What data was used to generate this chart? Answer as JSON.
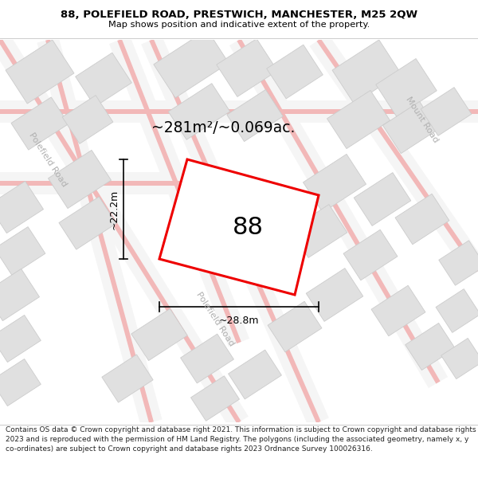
{
  "title": "88, POLEFIELD ROAD, PRESTWICH, MANCHESTER, M25 2QW",
  "subtitle": "Map shows position and indicative extent of the property.",
  "footer": "Contains OS data © Crown copyright and database right 2021. This information is subject to Crown copyright and database rights 2023 and is reproduced with the permission of HM Land Registry. The polygons (including the associated geometry, namely x, y co-ordinates) are subject to Crown copyright and database rights 2023 Ordnance Survey 100026316.",
  "area_text": "~281m²/~0.069ac.",
  "width_text": "~28.8m",
  "height_text": "~22.2m",
  "label_88": "88",
  "road_label_left_1": "Polefield Road",
  "road_label_left_2": "Polefield Road",
  "road_label_right": "Mount Road",
  "map_bg": "#ffffff",
  "building_fill": "#e0e0e0",
  "building_stroke": "#cccccc",
  "red_outline": "#ee0000",
  "pink_road": "#f2b8b8",
  "highlight_fill": "#ffffff",
  "dim_line_color": "#000000",
  "road_text_color": "#b0b0b0",
  "title_color": "#000000",
  "footer_color": "#222222",
  "road_bg": "#eeeeee"
}
